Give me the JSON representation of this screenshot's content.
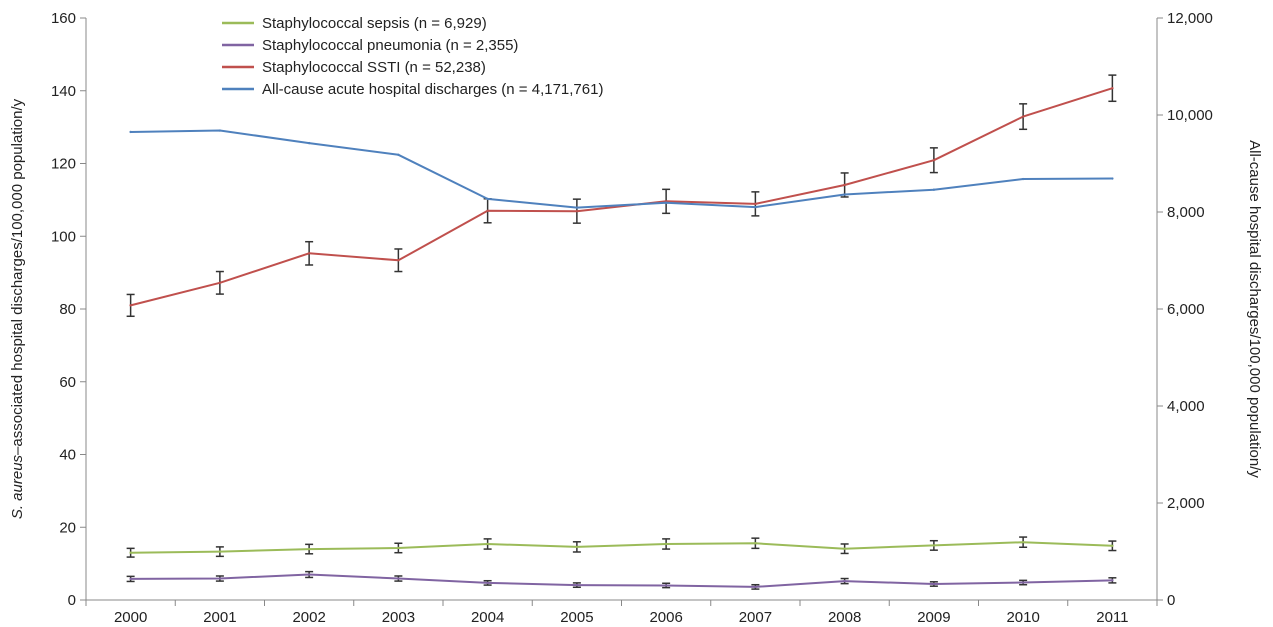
{
  "chart_data": {
    "type": "line",
    "categories": [
      "2000",
      "2001",
      "2002",
      "2003",
      "2004",
      "2005",
      "2006",
      "2007",
      "2008",
      "2009",
      "2010",
      "2011"
    ],
    "ylabel_left_italic": "S. aureus",
    "ylabel_left_rest": "–associated hospital discharges/100,000 population/y",
    "ylabel_right": "All-cause hospital discharges/100,000 population/y",
    "ylim_left": [
      0,
      160
    ],
    "yticks_left": [
      "0",
      "20",
      "40",
      "60",
      "80",
      "100",
      "120",
      "140",
      "160"
    ],
    "ylim_right": [
      0,
      12000
    ],
    "yticks_right": [
      "0",
      "2,000",
      "4,000",
      "6,000",
      "8,000",
      "10,000",
      "12,000"
    ],
    "grid": false,
    "legend_position": "top-left",
    "series": [
      {
        "name": "Staphylococcal sepsis (n = 6,929)",
        "axis": "left",
        "color": "#9bbb59",
        "values": [
          13.0,
          13.3,
          14.0,
          14.3,
          15.4,
          14.6,
          15.4,
          15.6,
          14.1,
          15.0,
          15.9,
          14.9
        ],
        "err": [
          1.2,
          1.3,
          1.3,
          1.3,
          1.4,
          1.4,
          1.4,
          1.4,
          1.3,
          1.3,
          1.4,
          1.3
        ]
      },
      {
        "name": "Staphylococcal pneumonia (n = 2,355)",
        "axis": "left",
        "color": "#8064a2",
        "values": [
          5.8,
          5.9,
          7.0,
          5.9,
          4.7,
          4.1,
          4.0,
          3.6,
          5.2,
          4.4,
          4.8,
          5.4
        ],
        "err": [
          0.7,
          0.7,
          0.8,
          0.7,
          0.6,
          0.6,
          0.6,
          0.6,
          0.7,
          0.6,
          0.6,
          0.7
        ]
      },
      {
        "name": "Staphylococcal SSTI (n = 52,238)",
        "axis": "left",
        "color": "#c0504d",
        "values": [
          81.0,
          87.2,
          95.3,
          93.4,
          107.0,
          106.9,
          109.6,
          108.9,
          114.1,
          120.9,
          132.9,
          140.7
        ],
        "err": [
          3.0,
          3.1,
          3.2,
          3.1,
          3.3,
          3.3,
          3.3,
          3.3,
          3.3,
          3.4,
          3.5,
          3.6
        ]
      },
      {
        "name": "All-cause acute hospital discharges (n = 4,171,761)",
        "axis": "right",
        "color": "#4f81bd",
        "values": [
          9650,
          9680,
          9420,
          9180,
          8270,
          8090,
          8190,
          8100,
          8360,
          8460,
          8680,
          8690
        ]
      }
    ]
  }
}
